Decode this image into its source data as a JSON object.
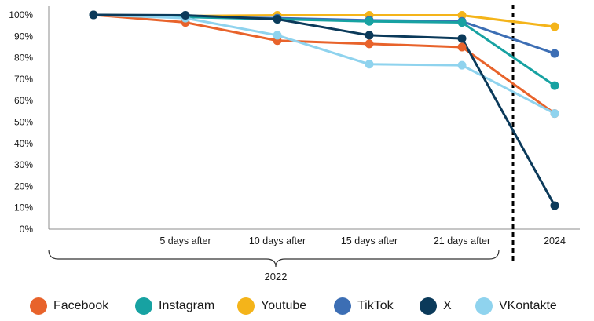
{
  "chart_data": {
    "type": "line",
    "title": "",
    "xlabel": "",
    "ylabel": "",
    "x": [
      "",
      "5 days after",
      "10 days after",
      "15 days after",
      "21 days after",
      "2024"
    ],
    "group_label": "2022",
    "y_ticks": [
      "0%",
      "10%",
      "20%",
      "30%",
      "40%",
      "50%",
      "60%",
      "70%",
      "80%",
      "90%",
      "100%"
    ],
    "ylim": [
      0,
      100
    ],
    "grid": false,
    "legend_position": "bottom",
    "series": [
      {
        "name": "Facebook",
        "color": "#E8632B",
        "values": [
          100,
          96.5,
          88,
          86.5,
          85,
          54
        ]
      },
      {
        "name": "Instagram",
        "color": "#17A2A2",
        "values": [
          100,
          99,
          98,
          97,
          96.5,
          67
        ]
      },
      {
        "name": "Youtube",
        "color": "#F4B41A",
        "values": [
          100,
          99.5,
          99.8,
          99.8,
          99.8,
          94.5
        ]
      },
      {
        "name": "TikTok",
        "color": "#3C6EB4",
        "values": [
          100,
          99,
          98.5,
          97.5,
          97,
          82
        ]
      },
      {
        "name": "X",
        "color": "#0B3A5A",
        "values": [
          100,
          99.8,
          98,
          90.5,
          89,
          11
        ]
      },
      {
        "name": "VKontakte",
        "color": "#8FD3EE",
        "values": [
          100,
          98.5,
          90.5,
          77,
          76.5,
          54
        ]
      }
    ]
  }
}
